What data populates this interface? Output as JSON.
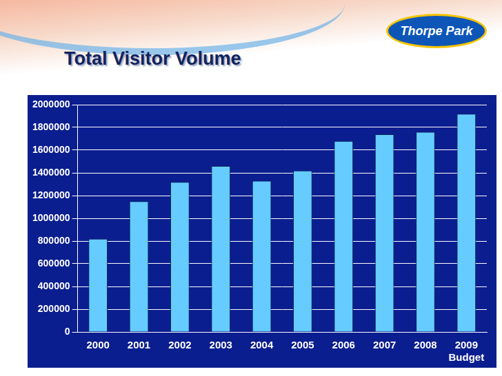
{
  "chart_data": {
    "type": "bar",
    "title": "Total Visitor Volume",
    "logo": "Thorpe Park",
    "categories": [
      "2000",
      "2001",
      "2002",
      "2003",
      "2004",
      "2005",
      "2006",
      "2007",
      "2008",
      "2009"
    ],
    "values": [
      820000,
      1150000,
      1320000,
      1460000,
      1330000,
      1420000,
      1680000,
      1740000,
      1760000,
      1920000
    ],
    "color": "#66ccff",
    "annotations": [
      {
        "text": "Budget",
        "category": "2009"
      }
    ],
    "ylim": [
      0,
      2000000
    ],
    "yticks": [
      0,
      200000,
      400000,
      600000,
      800000,
      1000000,
      1200000,
      1400000,
      1600000,
      1800000,
      2000000
    ],
    "grid": true
  }
}
